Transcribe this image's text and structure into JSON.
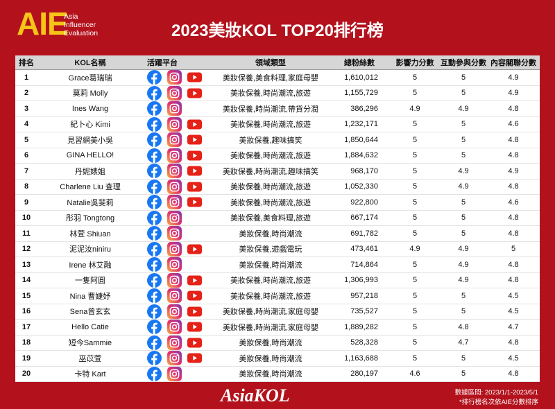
{
  "header": {
    "logo": "AIE",
    "logo_lines": [
      "Asia",
      "Influencer",
      "Evaluation"
    ],
    "title": "2023美妝KOL TOP20排行榜"
  },
  "table": {
    "columns": [
      "排名",
      "KOL名稱",
      "活躍平台",
      "領域類型",
      "總粉絲數",
      "影響力分數",
      "互動參與分數",
      "內容關聯分數"
    ],
    "rows": [
      {
        "rank": 1,
        "name": "Grace葛瑞瑞",
        "type": "美妝保養,美食料理,家庭母嬰",
        "fans": "1,610,012",
        "influence": 5,
        "engagement": 5,
        "relevance": 4.9
      },
      {
        "rank": 2,
        "name": "莫莉 Molly",
        "type": "美妝保養,時尚潮流,旅遊",
        "fans": "1,155,729",
        "influence": 5,
        "engagement": 5,
        "relevance": 4.9
      },
      {
        "rank": 3,
        "name": "Ines Wang",
        "type": "美妝保養,時尚潮流,帶貨分潤",
        "fans": "386,296",
        "influence": 4.9,
        "engagement": 4.9,
        "relevance": 4.8
      },
      {
        "rank": 4,
        "name": "紀卜心 Kimi",
        "type": "美妝保養,時尚潮流,旅遊",
        "fans": "1,232,171",
        "influence": 5,
        "engagement": 5,
        "relevance": 4.6
      },
      {
        "rank": 5,
        "name": "見習網美小吳",
        "type": "美妝保養,趣味搞笑",
        "fans": "1,850,644",
        "influence": 5,
        "engagement": 5,
        "relevance": 4.8
      },
      {
        "rank": 6,
        "name": "GINA HELLO!",
        "type": "美妝保養,時尚潮流,旅遊",
        "fans": "1,884,632",
        "influence": 5,
        "engagement": 5,
        "relevance": 4.8
      },
      {
        "rank": 7,
        "name": "丹妮婊姐",
        "type": "美妝保養,時尚潮流,趣味搞笑",
        "fans": "968,170",
        "influence": 5,
        "engagement": 4.9,
        "relevance": 4.9
      },
      {
        "rank": 8,
        "name": "Charlene Liu 查理",
        "type": "美妝保養,時尚潮流,旅遊",
        "fans": "1,052,330",
        "influence": 5,
        "engagement": 4.9,
        "relevance": 4.8
      },
      {
        "rank": 9,
        "name": "Natalie吳斐莉",
        "type": "美妝保養,時尚潮流,旅遊",
        "fans": "922,800",
        "influence": 5,
        "engagement": 5,
        "relevance": 4.6
      },
      {
        "rank": 10,
        "name": "彤羽 Tongtong",
        "type": "美妝保養,美食料理,旅遊",
        "fans": "667,174",
        "influence": 5,
        "engagement": 5,
        "relevance": 4.8
      },
      {
        "rank": 11,
        "name": "林萱 Shiuan",
        "type": "美妝保養,時尚潮流",
        "fans": "691,782",
        "influence": 5,
        "engagement": 5,
        "relevance": 4.8
      },
      {
        "rank": 12,
        "name": "泥泥汝niniru",
        "type": "美妝保養,遊戲電玩",
        "fans": "473,461",
        "influence": 4.9,
        "engagement": 4.9,
        "relevance": 5
      },
      {
        "rank": 13,
        "name": "Irene 林艾融",
        "type": "美妝保養,時尚潮流",
        "fans": "714,864",
        "influence": 5,
        "engagement": 4.9,
        "relevance": 4.8
      },
      {
        "rank": 14,
        "name": "一隻阿圓",
        "type": "美妝保養,時尚潮流,旅遊",
        "fans": "1,306,993",
        "influence": 5,
        "engagement": 4.9,
        "relevance": 4.8
      },
      {
        "rank": 15,
        "name": "Nina 曹婕妤",
        "type": "美妝保養,時尚潮流,旅遊",
        "fans": "957,218",
        "influence": 5,
        "engagement": 5,
        "relevance": 4.5
      },
      {
        "rank": 16,
        "name": "Sena曾玄玄",
        "type": "美妝保養,時尚潮流,家庭母嬰",
        "fans": "735,527",
        "influence": 5,
        "engagement": 5,
        "relevance": 4.5
      },
      {
        "rank": 17,
        "name": "Hello Catie",
        "type": "美妝保養,時尚潮流,家庭母嬰",
        "fans": "1,889,282",
        "influence": 5,
        "engagement": 4.8,
        "relevance": 4.7
      },
      {
        "rank": 18,
        "name": "短今Sammie",
        "type": "美妝保養,時尚潮流",
        "fans": "528,328",
        "influence": 5,
        "engagement": 4.7,
        "relevance": 4.8
      },
      {
        "rank": 19,
        "name": "巫苡萱",
        "type": "美妝保養,時尚潮流",
        "fans": "1,163,688",
        "influence": 5,
        "engagement": 5,
        "relevance": 4.5
      },
      {
        "rank": 20,
        "name": "卡特 Kart",
        "type": "美妝保養,時尚潮流",
        "fans": "280,197",
        "influence": 4.6,
        "engagement": 5,
        "relevance": 4.8
      }
    ]
  },
  "footer": {
    "brand": "AsiaKOL",
    "period": "數據區間: 2023/1/1-2023/5/1",
    "note": "*排行榜名次依AIE分數排序"
  }
}
